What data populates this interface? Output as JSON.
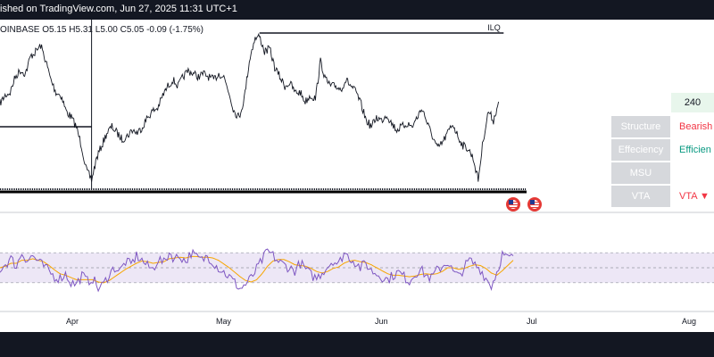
{
  "header": {
    "published_text": "ished on TradingView.com, Jun 27, 2025 11:31 UTC+1"
  },
  "symbol": {
    "exchange": "OINBASE",
    "open": "5.15",
    "high": "5.31",
    "low": "5.00",
    "close": "5.05",
    "change": "-0.09 (-1.75%)",
    "o_label": "O",
    "h_label": "H",
    "l_label": "L",
    "c_label": "C"
  },
  "annotation": {
    "level_label": "ILQ"
  },
  "colors": {
    "price_line": "#131722",
    "rsi_line": "#7e57c2",
    "rsi_ma": "#f7a600",
    "rsi_band": "#ede7f6",
    "bullish": "#089981",
    "bearish": "#f23645",
    "panel_label_bg": "#d6d8dc",
    "price_tag_bg": "#e8f6ec"
  },
  "widget": {
    "price_tag": "240",
    "rows": [
      {
        "label": "Structure",
        "value": "Bearish",
        "color": "#f23645"
      },
      {
        "label": "Effeciency",
        "value": "Efficien",
        "color": "#089981"
      },
      {
        "label": "MSU",
        "value": "",
        "color": "#131722"
      },
      {
        "label": "VTA",
        "value": "VTA ▼",
        "color": "#f23645"
      }
    ]
  },
  "events": [
    {
      "icon": "us-flag-icon"
    },
    {
      "icon": "us-flag-icon"
    }
  ],
  "chart_data": [
    {
      "type": "line",
      "title": "",
      "price_path": [
        [
          "2025-03-21",
          0.55
        ],
        [
          "2025-03-22",
          0.6
        ],
        [
          "2025-03-23",
          0.62
        ],
        [
          "2025-03-24",
          0.72
        ],
        [
          "2025-03-25",
          0.76
        ],
        [
          "2025-03-26",
          0.74
        ],
        [
          "2025-03-27",
          0.85
        ],
        [
          "2025-03-28",
          0.88
        ],
        [
          "2025-03-29",
          0.92
        ],
        [
          "2025-03-30",
          0.82
        ],
        [
          "2025-03-31",
          0.7
        ],
        [
          "2025-04-01",
          0.62
        ],
        [
          "2025-04-02",
          0.6
        ],
        [
          "2025-04-03",
          0.5
        ],
        [
          "2025-04-04",
          0.46
        ],
        [
          "2025-04-05",
          0.4
        ],
        [
          "2025-04-06",
          0.28
        ],
        [
          "2025-04-07",
          0.12
        ],
        [
          "2025-04-08",
          0.06
        ],
        [
          "2025-04-09",
          0.2
        ],
        [
          "2025-04-10",
          0.28
        ],
        [
          "2025-04-11",
          0.36
        ],
        [
          "2025-04-12",
          0.4
        ],
        [
          "2025-04-13",
          0.36
        ],
        [
          "2025-04-14",
          0.32
        ],
        [
          "2025-04-15",
          0.34
        ],
        [
          "2025-04-16",
          0.38
        ],
        [
          "2025-04-17",
          0.36
        ],
        [
          "2025-04-18",
          0.4
        ],
        [
          "2025-04-19",
          0.46
        ],
        [
          "2025-04-20",
          0.5
        ],
        [
          "2025-04-21",
          0.52
        ],
        [
          "2025-04-22",
          0.6
        ],
        [
          "2025-04-23",
          0.66
        ],
        [
          "2025-04-24",
          0.7
        ],
        [
          "2025-04-25",
          0.66
        ],
        [
          "2025-04-26",
          0.72
        ],
        [
          "2025-04-27",
          0.76
        ],
        [
          "2025-04-28",
          0.74
        ],
        [
          "2025-04-29",
          0.72
        ],
        [
          "2025-04-30",
          0.74
        ],
        [
          "2025-05-01",
          0.72
        ],
        [
          "2025-05-02",
          0.7
        ],
        [
          "2025-05-03",
          0.74
        ],
        [
          "2025-05-04",
          0.72
        ],
        [
          "2025-05-05",
          0.62
        ],
        [
          "2025-05-06",
          0.5
        ],
        [
          "2025-05-07",
          0.46
        ],
        [
          "2025-05-08",
          0.58
        ],
        [
          "2025-05-09",
          0.82
        ],
        [
          "2025-05-10",
          0.96
        ],
        [
          "2025-05-11",
          0.98
        ],
        [
          "2025-05-12",
          0.88
        ],
        [
          "2025-05-13",
          0.9
        ],
        [
          "2025-05-14",
          0.78
        ],
        [
          "2025-05-15",
          0.72
        ],
        [
          "2025-05-16",
          0.66
        ],
        [
          "2025-05-17",
          0.68
        ],
        [
          "2025-05-18",
          0.62
        ],
        [
          "2025-05-19",
          0.62
        ],
        [
          "2025-05-20",
          0.56
        ],
        [
          "2025-05-21",
          0.6
        ],
        [
          "2025-05-22",
          0.58
        ],
        [
          "2025-05-23",
          0.82
        ],
        [
          "2025-05-24",
          0.7
        ],
        [
          "2025-05-25",
          0.66
        ],
        [
          "2025-05-26",
          0.66
        ],
        [
          "2025-05-27",
          0.64
        ],
        [
          "2025-05-28",
          0.7
        ],
        [
          "2025-05-29",
          0.66
        ],
        [
          "2025-05-30",
          0.62
        ],
        [
          "2025-05-31",
          0.54
        ],
        [
          "2025-06-01",
          0.44
        ],
        [
          "2025-06-02",
          0.4
        ],
        [
          "2025-06-03",
          0.46
        ],
        [
          "2025-06-04",
          0.44
        ],
        [
          "2025-06-05",
          0.48
        ],
        [
          "2025-06-06",
          0.42
        ],
        [
          "2025-06-07",
          0.38
        ],
        [
          "2025-06-08",
          0.4
        ],
        [
          "2025-06-09",
          0.42
        ],
        [
          "2025-06-10",
          0.4
        ],
        [
          "2025-06-11",
          0.46
        ],
        [
          "2025-06-12",
          0.52
        ],
        [
          "2025-06-13",
          0.42
        ],
        [
          "2025-06-14",
          0.34
        ],
        [
          "2025-06-15",
          0.26
        ],
        [
          "2025-06-16",
          0.3
        ],
        [
          "2025-06-17",
          0.36
        ],
        [
          "2025-06-18",
          0.42
        ],
        [
          "2025-06-19",
          0.34
        ],
        [
          "2025-06-20",
          0.28
        ],
        [
          "2025-06-21",
          0.26
        ],
        [
          "2025-06-22",
          0.2
        ],
        [
          "2025-06-23",
          0.06
        ],
        [
          "2025-06-24",
          0.32
        ],
        [
          "2025-06-25",
          0.5
        ],
        [
          "2025-06-26",
          0.44
        ],
        [
          "2025-06-27",
          0.56
        ]
      ],
      "levels": [
        {
          "label": "ILQ",
          "value": 1.0,
          "from": "2025-05-11",
          "to": "2025-06-28"
        },
        {
          "label": "",
          "value": 0.4,
          "from": "2025-03-21",
          "to": "2025-04-08"
        }
      ],
      "vline": "2025-04-08",
      "ylim": [
        0,
        1
      ],
      "xlabels": [
        "Apr",
        "May",
        "Jun",
        "Jul",
        "Aug"
      ],
      "xtick_dates": [
        "2025-04-01",
        "2025-05-01",
        "2025-06-01",
        "2025-07-01",
        "2025-08-01"
      ]
    },
    {
      "type": "line",
      "title": "",
      "series": [
        {
          "values": [
            48,
            55,
            62,
            52,
            70,
            60,
            66,
            58,
            52,
            45,
            38,
            36,
            42,
            30,
            28,
            40,
            32,
            36,
            22,
            28,
            42,
            50,
            46,
            58,
            54,
            66,
            60,
            52,
            48,
            62,
            56,
            70,
            62,
            66,
            58,
            70,
            64,
            60,
            66,
            58,
            50,
            44,
            38,
            30,
            22,
            28,
            36,
            48,
            60,
            72,
            66,
            58,
            54,
            50,
            46,
            56,
            48,
            40,
            36,
            44,
            52,
            60,
            54,
            70,
            64,
            58,
            50,
            56,
            46,
            42,
            38,
            34,
            40,
            44,
            38,
            32,
            42,
            48,
            40,
            36,
            46,
            52,
            58,
            44,
            38,
            50,
            60,
            54,
            48,
            36,
            26,
            44,
            68,
            62,
            66
          ]
        },
        {
          "values": [
            50,
            52,
            56,
            56,
            60,
            60,
            62,
            60,
            58,
            53,
            47,
            42,
            40,
            37,
            34,
            34,
            34,
            34,
            31,
            30,
            33,
            38,
            43,
            48,
            52,
            56,
            59,
            58,
            56,
            57,
            58,
            62,
            63,
            64,
            63,
            65,
            65,
            64,
            64,
            63,
            60,
            55,
            50,
            44,
            38,
            33,
            31,
            34,
            42,
            52,
            59,
            61,
            61,
            58,
            54,
            53,
            52,
            49,
            45,
            43,
            45,
            49,
            51,
            56,
            59,
            60,
            58,
            57,
            54,
            50,
            46,
            42,
            40,
            40,
            39,
            38,
            39,
            41,
            42,
            41,
            42,
            45,
            50,
            50,
            48,
            49,
            52,
            54,
            53,
            49,
            43,
            40,
            46,
            53,
            60
          ]
        }
      ],
      "ylim": [
        0,
        100
      ],
      "bands": [
        70,
        50,
        30
      ]
    }
  ]
}
